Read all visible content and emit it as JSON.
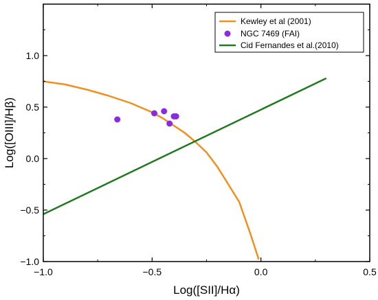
{
  "chart_data": {
    "type": "scatter",
    "xlabel": "Log([SII]/Hα)",
    "ylabel": "Log([OIII]/Hβ)",
    "xlim": [
      -1.0,
      0.5
    ],
    "ylim": [
      -1.0,
      1.5
    ],
    "x_ticks": [
      -1.0,
      -0.5,
      0.0,
      0.5
    ],
    "y_ticks": [
      -1.0,
      -0.5,
      0.0,
      0.5,
      1.0
    ],
    "x_tick_labels": [
      "−1.0",
      "−0.5",
      "0.0",
      "0.5"
    ],
    "y_tick_labels": [
      "−1.0",
      "−0.5",
      "0.0",
      "0.5",
      "1.0"
    ],
    "grid": false,
    "legend_position": "top-right",
    "series": [
      {
        "name": "Kewley et al (2001)",
        "kind": "line",
        "color": "#f28e1c",
        "x": [
          -1.0,
          -0.9,
          -0.8,
          -0.7,
          -0.6,
          -0.5,
          -0.45,
          -0.4,
          -0.35,
          -0.3,
          -0.25,
          -0.2,
          -0.15,
          -0.1,
          -0.05,
          -0.01
        ],
        "y": [
          0.75,
          0.72,
          0.67,
          0.61,
          0.54,
          0.45,
          0.39,
          0.32,
          0.25,
          0.16,
          0.06,
          -0.08,
          -0.25,
          -0.42,
          -0.72,
          -0.98
        ]
      },
      {
        "name": "NGC 7469 (FAI)",
        "kind": "scatter",
        "color": "#8a2be2",
        "x": [
          -0.66,
          -0.49,
          -0.445,
          -0.42,
          -0.4,
          -0.39
        ],
        "y": [
          0.38,
          0.44,
          0.46,
          0.34,
          0.41,
          0.41
        ]
      },
      {
        "name": "Cid Fernandes et al.(2010)",
        "kind": "line",
        "color": "#1f7a1f",
        "x": [
          -1.0,
          0.3
        ],
        "y": [
          -0.54,
          0.78
        ]
      }
    ]
  }
}
